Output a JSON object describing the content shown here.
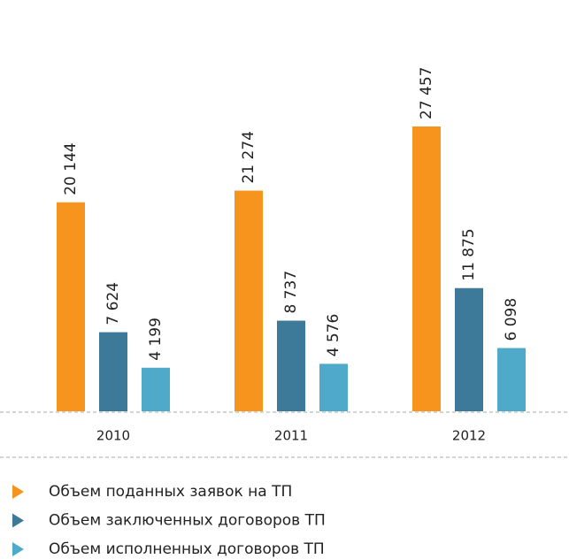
{
  "chart_data": {
    "type": "bar",
    "categories": [
      "2010",
      "2011",
      "2012"
    ],
    "series": [
      {
        "name": "Объем поданных заявок на ТП",
        "color": "#f7941d",
        "values": [
          20144,
          21274,
          27457
        ],
        "value_labels": [
          "20 144",
          "21 274",
          "27 457"
        ]
      },
      {
        "name": "Объем заключенных договоров ТП",
        "color": "#3d7a99",
        "values": [
          7624,
          8737,
          11875
        ],
        "value_labels": [
          "7 624",
          "8 737",
          "11 875"
        ]
      },
      {
        "name": "Объем исполненных договоров ТП",
        "color": "#4eaac8",
        "values": [
          4199,
          4576,
          6098
        ],
        "value_labels": [
          "4 199",
          "4 576",
          "6 098"
        ]
      }
    ]
  }
}
